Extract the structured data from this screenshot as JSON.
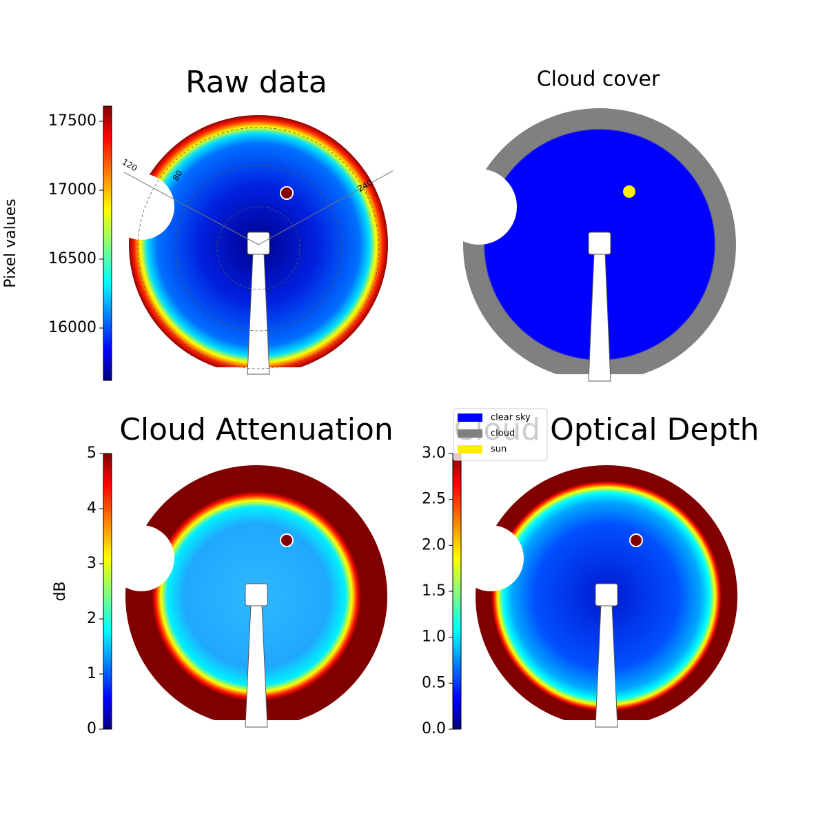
{
  "chart_data": [
    {
      "type": "image",
      "title": "Raw data",
      "colormap": "jet",
      "colorbar": {
        "label": "Pixel values",
        "ylim": [
          15620,
          17610
        ],
        "yticks": [
          16000,
          16500,
          17000,
          17500
        ]
      },
      "annotations": [
        "120",
        "240",
        "80"
      ]
    },
    {
      "type": "image",
      "title": "Cloud cover",
      "legend": [
        {
          "name": "clear sky",
          "color": "#0000ff"
        },
        {
          "name": "cloud",
          "color": "#808080"
        },
        {
          "name": "sun",
          "color": "#ffee00"
        }
      ]
    },
    {
      "type": "image",
      "title": "Cloud Attenuation",
      "colormap": "jet",
      "colorbar": {
        "label": "dB",
        "ylim": [
          0,
          5
        ],
        "yticks": [
          0,
          1,
          2,
          3,
          4,
          5
        ]
      }
    },
    {
      "type": "image",
      "title": "Cloud Optical Depth",
      "colormap": "jet",
      "colorbar": {
        "ylim": [
          0,
          3
        ],
        "yticks": [
          {
            "value": 0,
            "label": "0.0"
          },
          0.5,
          {
            "value": 1,
            "label": "1.0"
          },
          1.5,
          {
            "value": 2,
            "label": "2.0"
          },
          2.5,
          {
            "value": 3,
            "label": "3.0"
          }
        ]
      }
    }
  ]
}
